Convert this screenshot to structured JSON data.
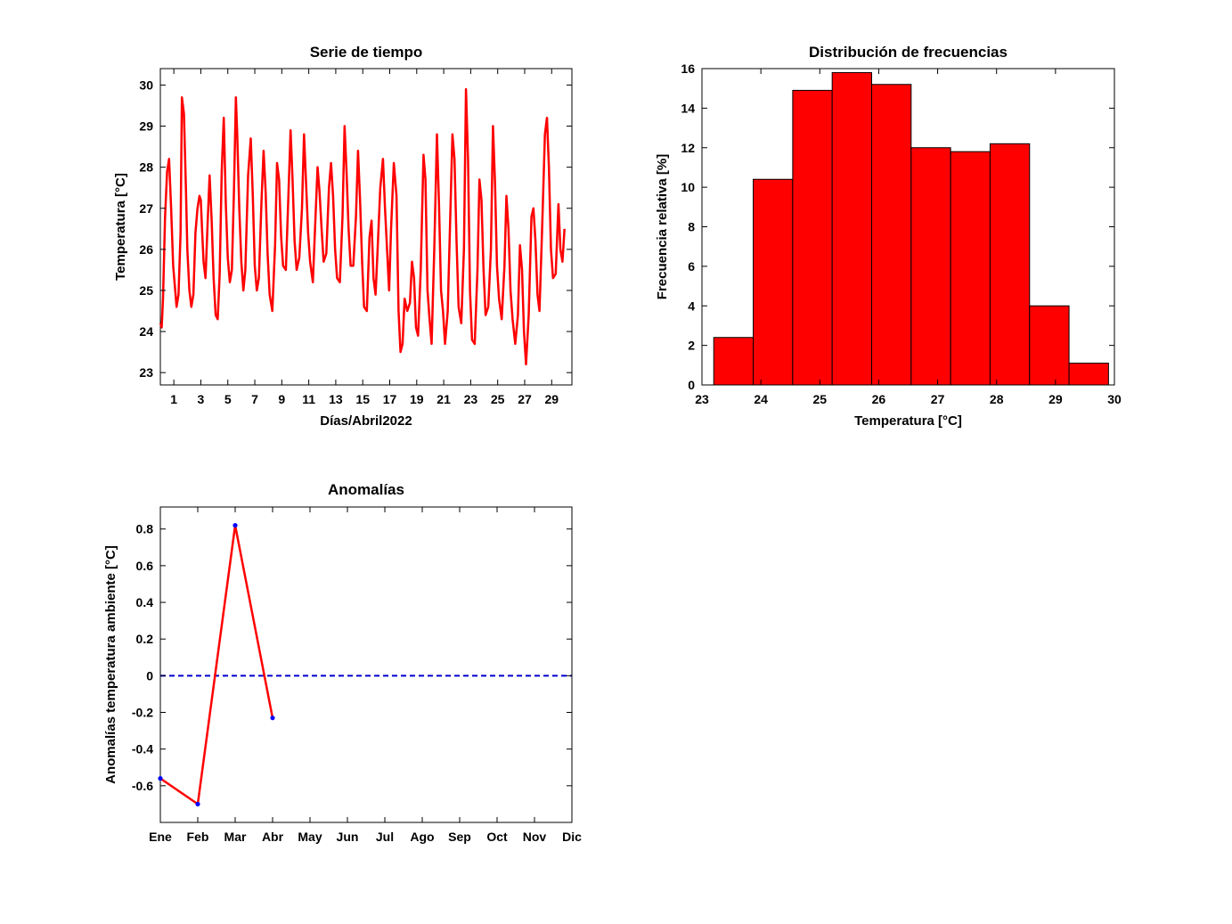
{
  "chart_data": [
    {
      "id": "timeseries",
      "type": "line",
      "title": "Serie de tiempo",
      "xlabel": "Días/Abril2022",
      "ylabel": "Temperatura [°C]",
      "xlim": [
        0,
        30.5
      ],
      "ylim": [
        22.7,
        30.4
      ],
      "xticks": [
        1,
        3,
        5,
        7,
        9,
        11,
        13,
        15,
        17,
        19,
        21,
        23,
        25,
        27,
        29
      ],
      "yticks": [
        23,
        24,
        25,
        26,
        27,
        28,
        29,
        30
      ],
      "grid": false,
      "color": "#ff0000",
      "series": [
        {
          "x": [
            0.0,
            0.1,
            0.2,
            0.35,
            0.5,
            0.65,
            0.8,
            0.95,
            1.1,
            1.2,
            1.35,
            1.5,
            1.6,
            1.75,
            1.9,
            2.0,
            2.15,
            2.3,
            2.45,
            2.6,
            2.75,
            2.9,
            3.0,
            3.1,
            3.2,
            3.35,
            3.5,
            3.65,
            3.8,
            3.95,
            4.1,
            4.25,
            4.4,
            4.55,
            4.7,
            4.85,
            5.0,
            5.15,
            5.3,
            5.45,
            5.6,
            5.7,
            5.85,
            6.0,
            6.15,
            6.3,
            6.5,
            6.7,
            6.85,
            7.0,
            7.15,
            7.3,
            7.5,
            7.65,
            7.8,
            7.95,
            8.1,
            8.3,
            8.5,
            8.65,
            8.8,
            8.95,
            9.1,
            9.3,
            9.5,
            9.65,
            9.8,
            9.95,
            10.1,
            10.3,
            10.5,
            10.65,
            10.8,
            10.95,
            11.1,
            11.3,
            11.5,
            11.65,
            11.8,
            11.95,
            12.1,
            12.3,
            12.5,
            12.65,
            12.8,
            12.95,
            13.1,
            13.3,
            13.5,
            13.65,
            13.8,
            13.95,
            14.1,
            14.3,
            14.5,
            14.65,
            14.8,
            14.95,
            15.1,
            15.3,
            15.5,
            15.65,
            15.8,
            15.95,
            16.1,
            16.3,
            16.5,
            16.65,
            16.8,
            16.95,
            17.1,
            17.3,
            17.5,
            17.65,
            17.8,
            17.95,
            18.1,
            18.3,
            18.5,
            18.65,
            18.8,
            18.95,
            19.1,
            19.3,
            19.5,
            19.65,
            19.8,
            19.95,
            20.1,
            20.3,
            20.5,
            20.65,
            20.8,
            20.95,
            21.1,
            21.3,
            21.5,
            21.65,
            21.8,
            21.95,
            22.1,
            22.3,
            22.5,
            22.65,
            22.8,
            22.95,
            23.1,
            23.3,
            23.5,
            23.65,
            23.8,
            23.95,
            24.1,
            24.3,
            24.5,
            24.65,
            24.8,
            24.95,
            25.1,
            25.3,
            25.5,
            25.65,
            25.8,
            25.95,
            26.1,
            26.3,
            26.5,
            26.65,
            26.8,
            26.95,
            27.1,
            27.3,
            27.5,
            27.65,
            27.8,
            27.95,
            28.1,
            28.3,
            28.5,
            28.65,
            28.8,
            28.95,
            29.1,
            29.3,
            29.5,
            29.65,
            29.8,
            29.95
          ],
          "y": [
            24.2,
            24.1,
            24.8,
            26.8,
            27.9,
            28.2,
            27.0,
            25.6,
            25.0,
            24.6,
            24.9,
            26.4,
            29.7,
            29.3,
            27.4,
            26.0,
            25.0,
            24.6,
            24.9,
            26.4,
            27.0,
            27.3,
            27.2,
            26.4,
            25.7,
            25.3,
            26.6,
            27.8,
            26.7,
            25.3,
            24.4,
            24.3,
            25.4,
            27.9,
            29.2,
            27.1,
            25.8,
            25.2,
            25.5,
            27.4,
            29.7,
            28.8,
            27.0,
            25.7,
            25.0,
            25.5,
            27.8,
            28.7,
            27.3,
            25.6,
            25.0,
            25.3,
            27.2,
            28.4,
            27.4,
            25.9,
            24.9,
            24.5,
            26.1,
            28.1,
            27.7,
            26.3,
            25.6,
            25.5,
            27.4,
            28.9,
            27.7,
            26.2,
            25.5,
            25.8,
            27.0,
            28.8,
            27.6,
            26.4,
            25.7,
            25.2,
            26.8,
            28.0,
            27.4,
            26.5,
            25.7,
            25.9,
            27.5,
            28.1,
            27.3,
            26.0,
            25.3,
            25.2,
            26.8,
            29.0,
            27.9,
            26.5,
            25.6,
            25.6,
            26.8,
            28.4,
            27.2,
            25.7,
            24.6,
            24.5,
            26.3,
            26.7,
            25.3,
            24.9,
            26.0,
            27.5,
            28.2,
            27.0,
            26.0,
            25.0,
            26.5,
            28.1,
            27.3,
            24.5,
            23.5,
            23.7,
            24.8,
            24.5,
            24.7,
            25.7,
            25.3,
            24.1,
            23.9,
            25.5,
            28.3,
            27.7,
            25.0,
            24.3,
            23.7,
            26.0,
            28.8,
            27.1,
            25.0,
            24.5,
            23.7,
            24.5,
            27.0,
            28.8,
            28.2,
            26.2,
            24.6,
            24.2,
            26.0,
            29.9,
            28.2,
            25.0,
            23.8,
            23.7,
            25.5,
            27.7,
            27.2,
            25.5,
            24.4,
            24.6,
            26.0,
            29.0,
            27.6,
            25.6,
            24.8,
            24.3,
            25.6,
            27.3,
            26.5,
            25.0,
            24.3,
            23.7,
            24.4,
            26.1,
            25.5,
            24.0,
            23.2,
            24.4,
            26.8,
            27.0,
            26.2,
            24.9,
            24.5,
            26.6,
            28.8,
            29.2,
            28.0,
            26.0,
            25.3,
            25.4,
            27.1,
            26.0,
            25.7,
            26.5
          ]
        }
      ]
    },
    {
      "id": "histogram",
      "type": "bar",
      "title": "Distribución de frecuencias",
      "xlabel": "Temperatura [°C]",
      "ylabel": "Frecuencia relativa [%]",
      "xlim": [
        23,
        30
      ],
      "ylim": [
        0,
        16
      ],
      "xticks": [
        23,
        24,
        25,
        26,
        27,
        28,
        29,
        30
      ],
      "yticks": [
        0,
        2,
        4,
        6,
        8,
        10,
        12,
        14,
        16
      ],
      "grid": false,
      "color": "#ff0000",
      "bin_edges": [
        23.2,
        23.87,
        24.54,
        25.21,
        25.88,
        26.55,
        27.22,
        27.89,
        28.56,
        29.23,
        29.9
      ],
      "values": [
        2.4,
        10.4,
        14.9,
        15.8,
        15.2,
        12.0,
        11.8,
        12.2,
        4.0,
        1.1
      ]
    },
    {
      "id": "anomalies",
      "type": "line",
      "title": "Anomalías",
      "xlabel": "",
      "ylabel": "Anomalías temperatura ambiente [°C]",
      "categories": [
        "Ene",
        "Feb",
        "Mar",
        "Abr",
        "May",
        "Jun",
        "Jul",
        "Ago",
        "Sep",
        "Oct",
        "Nov",
        "Dic"
      ],
      "ylim": [
        -0.8,
        0.92
      ],
      "yticks": [
        -0.6,
        -0.4,
        -0.2,
        0,
        0.2,
        0.4,
        0.6,
        0.8
      ],
      "ytick_labels": [
        "-0.6",
        "-0.4",
        "-0.2",
        "0",
        "0.2",
        "0.4",
        "0.6",
        "0.8"
      ],
      "grid": false,
      "line_color": "#ff0000",
      "marker_color": "#0000ff",
      "zero_line_color": "#0000cc",
      "series": [
        {
          "x": [
            1,
            2,
            3,
            4
          ],
          "values": [
            -0.56,
            -0.7,
            0.82,
            -0.23
          ]
        }
      ]
    }
  ]
}
